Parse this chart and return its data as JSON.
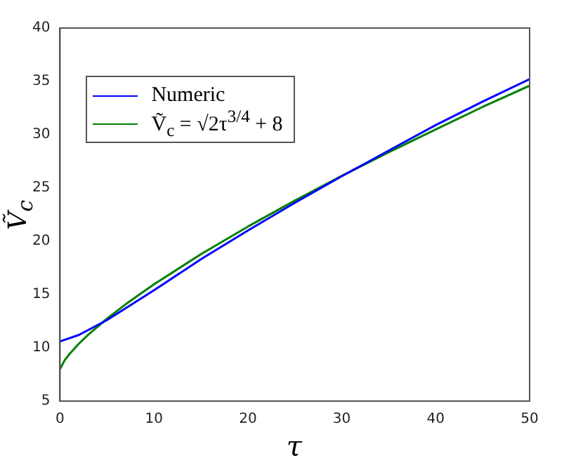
{
  "chart_data": {
    "type": "line",
    "xlabel": "τ",
    "ylabel": "Ṽ$_{c}$",
    "xlim": [
      0,
      50
    ],
    "ylim": [
      5,
      40
    ],
    "xticks": [
      0,
      10,
      20,
      30,
      40,
      50
    ],
    "yticks": [
      5,
      10,
      15,
      20,
      25,
      30,
      35,
      40
    ],
    "grid": false,
    "legend": "top left",
    "marker": "none",
    "line_style": "solid",
    "series": [
      {
        "name": "Numeric",
        "color": "#0000ff",
        "x": [
          0,
          2,
          5,
          10,
          15,
          20,
          25,
          30,
          35,
          40,
          45,
          50
        ],
        "values": [
          10.6,
          11.2,
          12.6,
          15.4,
          18.3,
          21.0,
          23.6,
          26.1,
          28.5,
          30.9,
          33.1,
          35.2
        ]
      },
      {
        "name": "Ṽ$_{c}$ = √2τ$^{3/4}$ + 8",
        "color": "#008000",
        "x": [
          0,
          0.5,
          1,
          2,
          3,
          5,
          7,
          10,
          15,
          20,
          25,
          30,
          35,
          40,
          45,
          50
        ],
        "values": [
          8,
          8.84,
          9.41,
          10.38,
          11.22,
          12.73,
          14.09,
          15.95,
          18.78,
          21.37,
          23.81,
          26.13,
          28.35,
          30.49,
          32.6,
          34.59
        ]
      }
    ]
  }
}
